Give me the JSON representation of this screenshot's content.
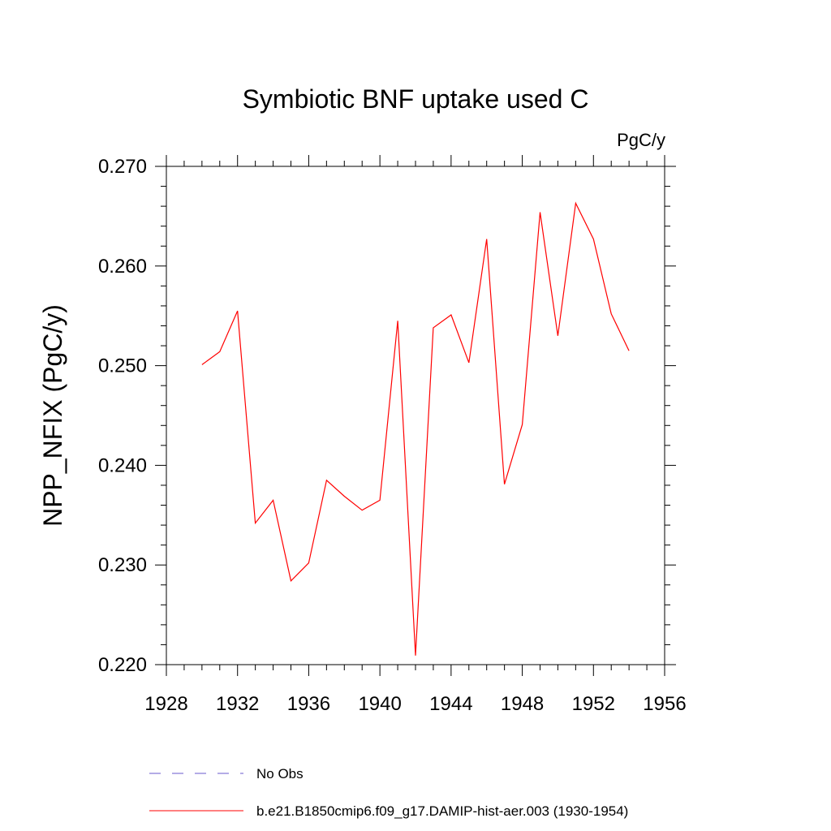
{
  "chart_data": {
    "type": "line",
    "title": "Symbiotic BNF uptake used C",
    "units_label": "PgC/y",
    "xlabel": "",
    "ylabel": "NPP_NFIX  (PgC/y)",
    "xlim": [
      1928,
      1956
    ],
    "ylim": [
      0.22,
      0.27
    ],
    "x_ticks": [
      1928,
      1932,
      1936,
      1940,
      1944,
      1948,
      1952,
      1956
    ],
    "x_tick_labels": [
      "1928",
      "1932",
      "1936",
      "1940",
      "1944",
      "1948",
      "1952",
      "1956"
    ],
    "y_ticks": [
      0.22,
      0.23,
      0.24,
      0.25,
      0.26,
      0.27
    ],
    "y_tick_labels": [
      "0.220",
      "0.230",
      "0.240",
      "0.250",
      "0.260",
      "0.270"
    ],
    "grid": false,
    "legend_position": "bottom",
    "series": [
      {
        "name": "b.e21.B1850cmip6.f09_g17.DAMIP-hist-aer.003 (1930-1954)",
        "color": "#ff0000",
        "style": "solid",
        "x": [
          1930,
          1931,
          1932,
          1933,
          1934,
          1935,
          1936,
          1937,
          1938,
          1939,
          1940,
          1941,
          1942,
          1943,
          1944,
          1945,
          1946,
          1947,
          1948,
          1949,
          1950,
          1951,
          1952,
          1953,
          1954
        ],
        "y": [
          0.2501,
          0.2514,
          0.2555,
          0.2342,
          0.2365,
          0.2284,
          0.2302,
          0.2385,
          0.2369,
          0.2355,
          0.2365,
          0.2545,
          0.2209,
          0.2538,
          0.2551,
          0.2503,
          0.2627,
          0.2381,
          0.2441,
          0.2654,
          0.253,
          0.2663,
          0.2627,
          0.2552,
          0.2515
        ]
      }
    ],
    "legend": [
      {
        "label": "No Obs",
        "color": "#6a5acd",
        "style": "dashed"
      },
      {
        "label": "b.e21.B1850cmip6.f09_g17.DAMIP-hist-aer.003 (1930-1954)",
        "color": "#ff0000",
        "style": "solid"
      }
    ]
  }
}
